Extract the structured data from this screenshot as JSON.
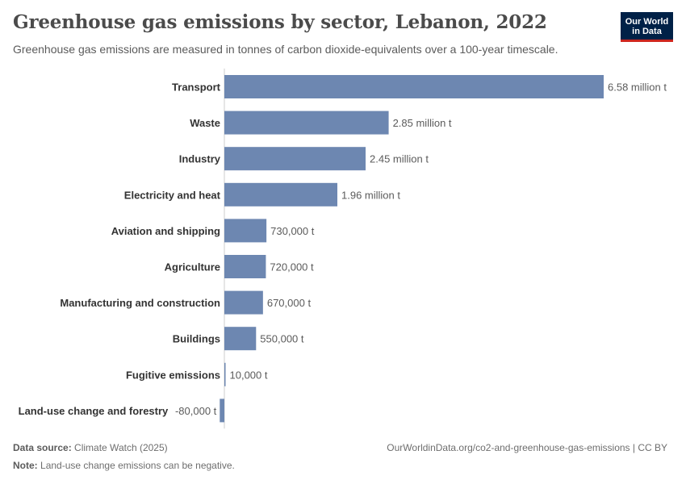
{
  "header": {
    "title": "Greenhouse gas emissions by sector, Lebanon, 2022",
    "subtitle": "Greenhouse gas emissions are measured in tonnes of carbon dioxide-equivalents over a 100-year timescale.",
    "logo_line1": "Our World",
    "logo_line2": "in Data"
  },
  "footer": {
    "source_label": "Data source:",
    "source_value": "Climate Watch (2025)",
    "url": "OurWorldinData.org/co2-and-greenhouse-gas-emissions | CC BY",
    "note_label": "Note:",
    "note_value": "Land-use change emissions can be negative."
  },
  "colors": {
    "bar": "#6d87b1",
    "axis": "#cccccc",
    "label": "#333333",
    "value": "#5b5b5b"
  },
  "chart_data": {
    "type": "bar",
    "orientation": "horizontal",
    "title": "Greenhouse gas emissions by sector, Lebanon, 2022",
    "categories": [
      "Transport",
      "Waste",
      "Industry",
      "Electricity and heat",
      "Aviation and shipping",
      "Agriculture",
      "Manufacturing and construction",
      "Buildings",
      "Fugitive emissions",
      "Land-use change and forestry"
    ],
    "values": [
      6580000,
      2850000,
      2450000,
      1960000,
      730000,
      720000,
      670000,
      550000,
      10000,
      -80000
    ],
    "value_labels": [
      "6.58 million t",
      "2.85 million t",
      "2.45 million t",
      "1.96 million t",
      "730,000 t",
      "720,000 t",
      "670,000 t",
      "550,000 t",
      "10,000 t",
      "-80,000 t"
    ],
    "xlim": [
      -80000,
      6580000
    ],
    "grid": false
  }
}
